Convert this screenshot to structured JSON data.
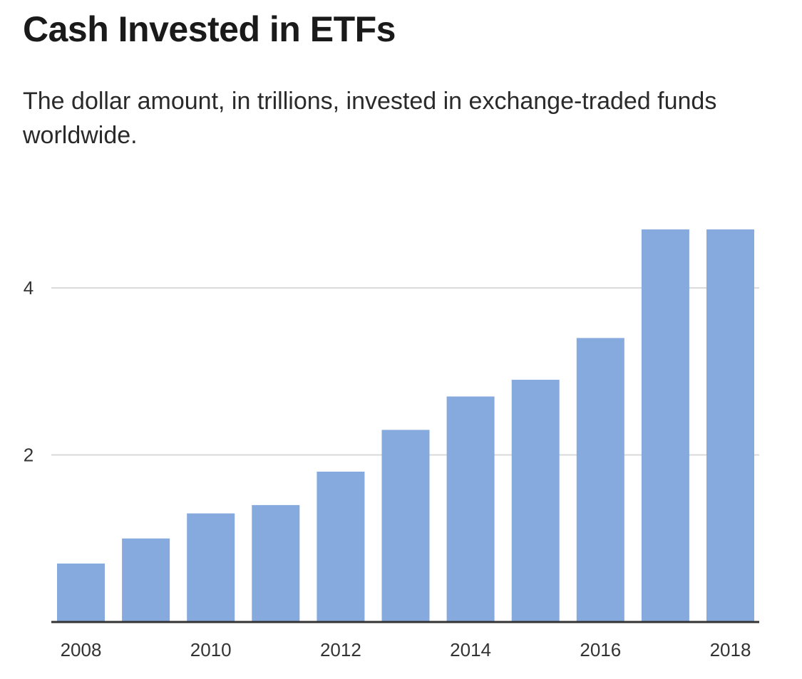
{
  "title": "Cash Invested in ETFs",
  "subtitle": "The dollar amount, in trillions, invested in exchange-traded funds worldwide.",
  "colors": {
    "bar": "#86a9de",
    "grid": "#d9d9d9",
    "axis": "#333333"
  },
  "chart_data": {
    "type": "bar",
    "title": "Cash Invested in ETFs",
    "subtitle": "The dollar amount, in trillions, invested in exchange-traded funds worldwide.",
    "categories": [
      "2008",
      "2009",
      "2010",
      "2011",
      "2012",
      "2013",
      "2014",
      "2015",
      "2016",
      "2017",
      "2018"
    ],
    "values": [
      0.7,
      1.0,
      1.3,
      1.4,
      1.8,
      2.3,
      2.7,
      2.9,
      3.4,
      4.7,
      4.7
    ],
    "x_tick_labels": [
      "2008",
      "",
      "2010",
      "",
      "2012",
      "",
      "2014",
      "",
      "2016",
      "",
      "2018"
    ],
    "y_ticks": [
      {
        "value": 2,
        "label": "2"
      },
      {
        "value": 4,
        "label": "4"
      }
    ],
    "xlabel": "",
    "ylabel": "",
    "ylim": [
      0,
      4.7
    ],
    "grid": true
  }
}
